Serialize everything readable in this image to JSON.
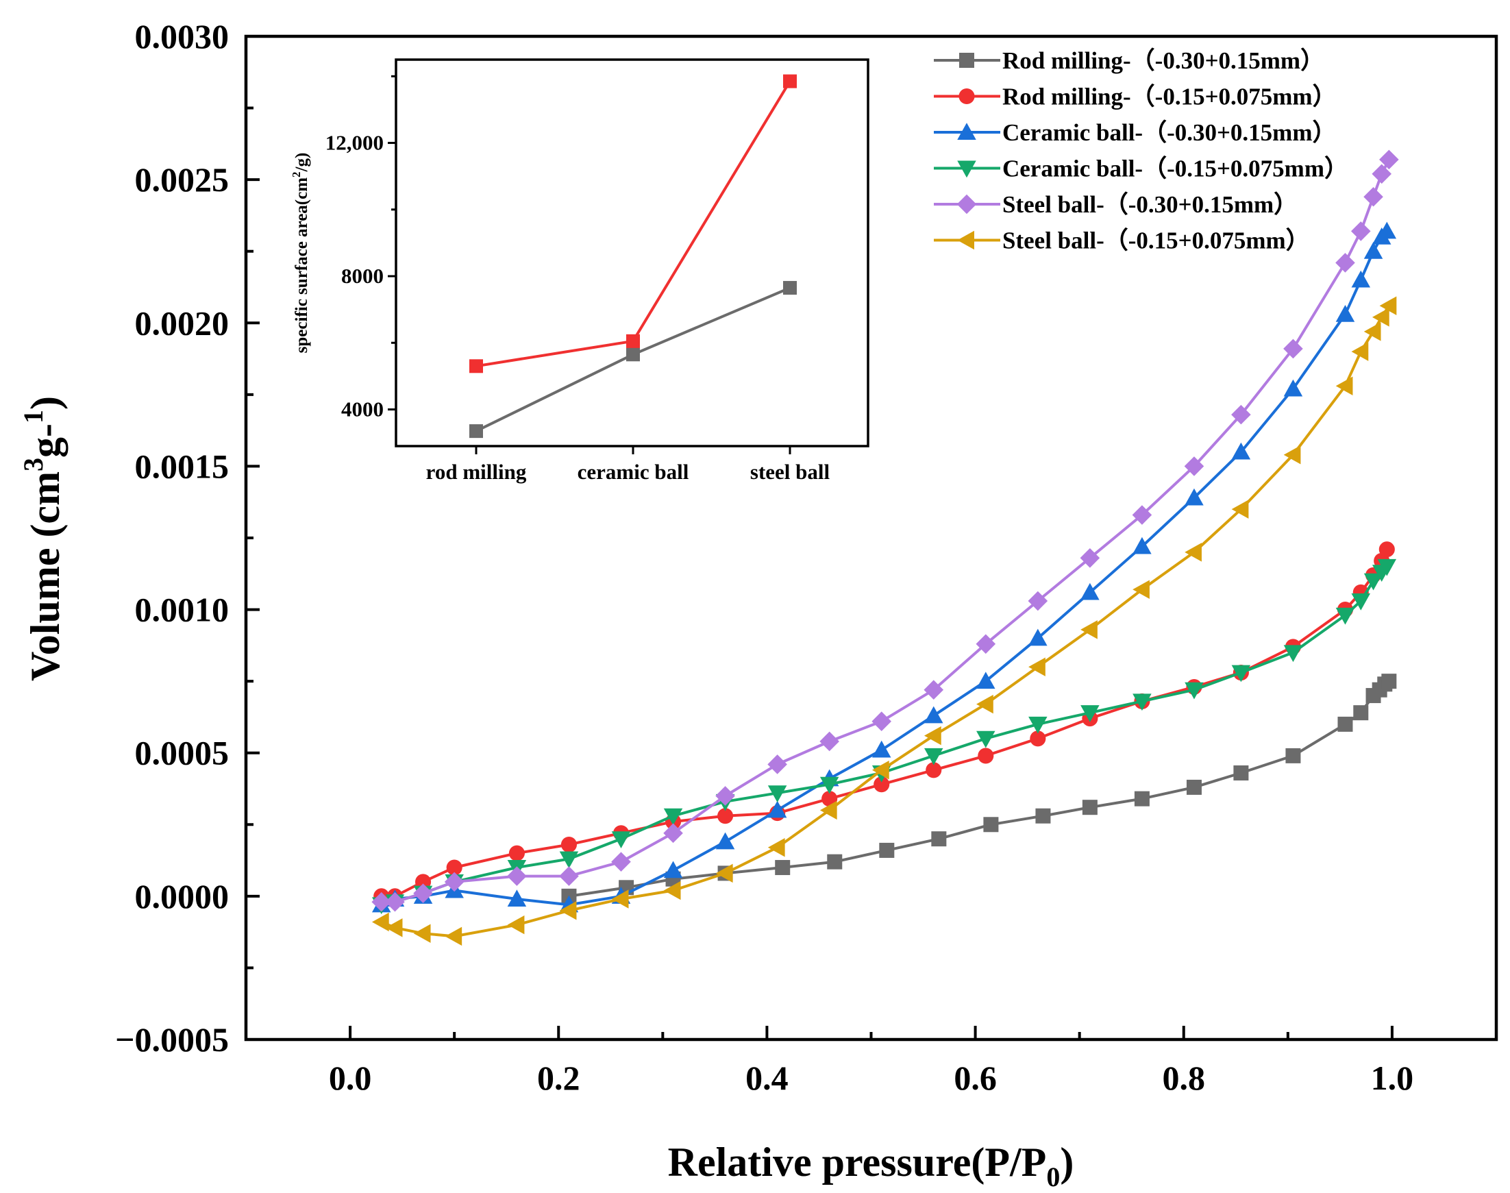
{
  "chart_data": [
    {
      "type": "line",
      "title": "",
      "xlabel": "Relative pressure(P/P0)",
      "xlabel_main": "Relative pressure(P/P",
      "xlabel_sub": "0",
      "xlabel_close": ")",
      "ylabel": "Volume (cm3g-1)",
      "ylabel_pre": "Volume (cm",
      "ylabel_sup1": "3",
      "ylabel_mid": "g-",
      "ylabel_sup2": "1",
      "ylabel_close": ")",
      "xlim": [
        -0.1,
        1.1
      ],
      "ylim": [
        -0.0005,
        0.003
      ],
      "xticks": [
        0.0,
        0.2,
        0.4,
        0.6,
        0.8,
        1.0
      ],
      "xtick_labels": [
        "0.0",
        "0.2",
        "0.4",
        "0.6",
        "0.8",
        "1.0"
      ],
      "yticks": [
        -0.0005,
        0.0,
        0.0005,
        0.001,
        0.0015,
        0.002,
        0.0025,
        0.003
      ],
      "ytick_labels": [
        "−0.0005",
        "0.0000",
        "0.0005",
        "0.0010",
        "0.0015",
        "0.0020",
        "0.0025",
        "0.0030"
      ],
      "grid": false,
      "legend_position": "top-right",
      "series": [
        {
          "name": "Rod milling-（-0.30+0.15mm）",
          "color": "#6b6b6b",
          "marker": "square",
          "x": [
            0.21,
            0.265,
            0.31,
            0.36,
            0.415,
            0.465,
            0.515,
            0.565,
            0.615,
            0.665,
            0.71,
            0.76,
            0.81,
            0.855,
            0.905,
            0.955,
            0.97,
            0.982,
            0.988,
            0.993,
            0.997
          ],
          "y": [
            0.0,
            3e-05,
            6e-05,
            8e-05,
            0.0001,
            0.00012,
            0.00016,
            0.0002,
            0.00025,
            0.00028,
            0.00031,
            0.00034,
            0.00038,
            0.00043,
            0.00049,
            0.0006,
            0.00064,
            0.0007,
            0.00072,
            0.00074,
            0.00075
          ]
        },
        {
          "name": "Rod milling-（-0.15+0.075mm）",
          "color": "#f03030",
          "marker": "circle",
          "x": [
            0.03,
            0.043,
            0.07,
            0.1,
            0.16,
            0.21,
            0.26,
            0.31,
            0.36,
            0.41,
            0.46,
            0.51,
            0.56,
            0.61,
            0.66,
            0.71,
            0.76,
            0.81,
            0.855,
            0.905,
            0.955,
            0.97,
            0.982,
            0.99,
            0.995
          ],
          "y": [
            0.0,
            0.0,
            5e-05,
            0.0001,
            0.00015,
            0.00018,
            0.00022,
            0.00026,
            0.00028,
            0.00029,
            0.00034,
            0.00039,
            0.00044,
            0.00049,
            0.00055,
            0.00062,
            0.00068,
            0.00073,
            0.00078,
            0.00087,
            0.001,
            0.00106,
            0.00112,
            0.00117,
            0.00121
          ]
        },
        {
          "name": "Ceramic ball-（-0.30+0.15mm）",
          "color": "#1a6fd8",
          "marker": "triangle-up",
          "x": [
            0.03,
            0.043,
            0.07,
            0.1,
            0.16,
            0.21,
            0.26,
            0.31,
            0.36,
            0.41,
            0.46,
            0.51,
            0.56,
            0.61,
            0.66,
            0.71,
            0.76,
            0.81,
            0.855,
            0.905,
            0.955,
            0.97,
            0.982,
            0.99,
            0.995
          ],
          "y": [
            -3e-05,
            -1e-05,
            0.0,
            2e-05,
            -1e-05,
            -3e-05,
            0.0,
            9e-05,
            0.00019,
            0.0003,
            0.00041,
            0.00051,
            0.00063,
            0.00075,
            0.0009,
            0.00106,
            0.00122,
            0.00139,
            0.00155,
            0.00177,
            0.00203,
            0.00215,
            0.00225,
            0.0023,
            0.00232
          ]
        },
        {
          "name": "Ceramic ball-（-0.15+0.075mm）",
          "color": "#15a86a",
          "marker": "triangle-down",
          "x": [
            0.03,
            0.043,
            0.07,
            0.1,
            0.16,
            0.21,
            0.26,
            0.31,
            0.36,
            0.41,
            0.46,
            0.51,
            0.56,
            0.61,
            0.66,
            0.71,
            0.76,
            0.81,
            0.855,
            0.905,
            0.955,
            0.97,
            0.982,
            0.99,
            0.995
          ],
          "y": [
            -3e-05,
            -2e-05,
            1e-05,
            5e-05,
            0.0001,
            0.00013,
            0.0002,
            0.00028,
            0.00033,
            0.00036,
            0.00039,
            0.00043,
            0.00049,
            0.00055,
            0.0006,
            0.00064,
            0.00068,
            0.00072,
            0.00078,
            0.00085,
            0.00098,
            0.00103,
            0.0011,
            0.00113,
            0.00115
          ]
        },
        {
          "name": "Steel ball-（-0.30+0.15mm）",
          "color": "#b27be0",
          "marker": "diamond",
          "x": [
            0.03,
            0.043,
            0.07,
            0.1,
            0.16,
            0.21,
            0.26,
            0.31,
            0.36,
            0.41,
            0.46,
            0.51,
            0.56,
            0.61,
            0.66,
            0.71,
            0.76,
            0.81,
            0.855,
            0.905,
            0.955,
            0.97,
            0.982,
            0.99,
            0.997
          ],
          "y": [
            -2e-05,
            -2e-05,
            1e-05,
            5e-05,
            7e-05,
            7e-05,
            0.00012,
            0.00022,
            0.00035,
            0.00046,
            0.00054,
            0.00061,
            0.00072,
            0.00088,
            0.00103,
            0.00118,
            0.00133,
            0.0015,
            0.00168,
            0.00191,
            0.00221,
            0.00232,
            0.00244,
            0.00252,
            0.00257
          ]
        },
        {
          "name": "Steel ball-（-0.15+0.075mm）",
          "color": "#d9a00c",
          "marker": "triangle-left",
          "x": [
            0.03,
            0.043,
            0.07,
            0.1,
            0.16,
            0.21,
            0.26,
            0.31,
            0.36,
            0.41,
            0.46,
            0.51,
            0.56,
            0.61,
            0.66,
            0.71,
            0.76,
            0.81,
            0.855,
            0.905,
            0.955,
            0.97,
            0.982,
            0.99,
            0.997
          ],
          "y": [
            -9e-05,
            -0.00011,
            -0.00013,
            -0.00014,
            -0.0001,
            -5e-05,
            -1e-05,
            2e-05,
            8e-05,
            0.00017,
            0.0003,
            0.00044,
            0.00056,
            0.00067,
            0.0008,
            0.00093,
            0.00107,
            0.0012,
            0.00135,
            0.00154,
            0.00178,
            0.0019,
            0.00197,
            0.00202,
            0.00206
          ]
        }
      ]
    },
    {
      "type": "line",
      "title": "",
      "xlabel": "",
      "ylabel": "specific surface area(cm2/g)",
      "ylabel_pre": "specific surface area(cm",
      "ylabel_sup": "2",
      "ylabel_close": "/g)",
      "categories": [
        "rod milling",
        "ceramic ball",
        "steel ball"
      ],
      "ylim": [
        2900,
        14500
      ],
      "yticks": [
        4000,
        8000,
        12000
      ],
      "ytick_labels": [
        "4000",
        "8000",
        "12,000"
      ],
      "grid": false,
      "series": [
        {
          "name": "-0.30+0.15mm",
          "color": "#6b6b6b",
          "marker": "square",
          "values": [
            3350,
            5650,
            7650
          ]
        },
        {
          "name": "-0.15+0.075mm",
          "color": "#f03030",
          "marker": "square",
          "values": [
            5300,
            6050,
            13850
          ]
        }
      ]
    }
  ]
}
